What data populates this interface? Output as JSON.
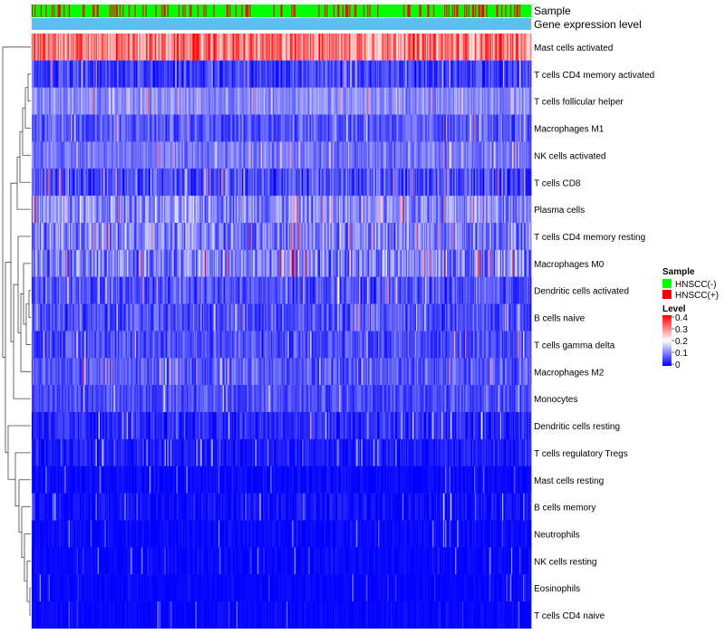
{
  "chart_data": {
    "type": "heatmap",
    "title": "",
    "annotation_tracks": [
      {
        "label": "Sample",
        "kind": "categorical",
        "mix_fraction_positive": 0.22
      },
      {
        "label": "Gene expression level",
        "kind": "constant",
        "color": "#5bc0eb"
      }
    ],
    "sample_groups": [
      {
        "name": "HNSCC(-)",
        "color": "#00ff00"
      },
      {
        "name": "HNSCC(+)",
        "color": "#ff0000"
      }
    ],
    "n_samples": 500,
    "rows": [
      {
        "name": "Mast cells activated",
        "mean": 0.3,
        "spread": 0.09
      },
      {
        "name": "T cells CD4 memory activated",
        "mean": 0.05,
        "spread": 0.05
      },
      {
        "name": "T cells follicular helper",
        "mean": 0.11,
        "spread": 0.04
      },
      {
        "name": "Macrophages M1",
        "mean": 0.07,
        "spread": 0.05
      },
      {
        "name": "NK cells activated",
        "mean": 0.09,
        "spread": 0.04
      },
      {
        "name": "T cells CD8",
        "mean": 0.06,
        "spread": 0.06
      },
      {
        "name": "Plasma cells",
        "mean": 0.11,
        "spread": 0.07
      },
      {
        "name": "T cells CD4 memory resting",
        "mean": 0.1,
        "spread": 0.07
      },
      {
        "name": "Macrophages M0",
        "mean": 0.1,
        "spread": 0.08
      },
      {
        "name": "Dendritic cells activated",
        "mean": 0.06,
        "spread": 0.05
      },
      {
        "name": "B cells naive",
        "mean": 0.06,
        "spread": 0.05
      },
      {
        "name": "T cells gamma delta",
        "mean": 0.06,
        "spread": 0.05
      },
      {
        "name": "Macrophages M2",
        "mean": 0.07,
        "spread": 0.05
      },
      {
        "name": "Monocytes",
        "mean": 0.06,
        "spread": 0.04
      },
      {
        "name": "Dendritic cells resting",
        "mean": 0.03,
        "spread": 0.04
      },
      {
        "name": "T cells regulatory  Tregs",
        "mean": 0.02,
        "spread": 0.03
      },
      {
        "name": "Mast cells resting",
        "mean": 0.005,
        "spread": 0.02
      },
      {
        "name": "B cells memory",
        "mean": 0.01,
        "spread": 0.03
      },
      {
        "name": "Neutrophils",
        "mean": 0.005,
        "spread": 0.02
      },
      {
        "name": "NK cells resting",
        "mean": 0.004,
        "spread": 0.015
      },
      {
        "name": "Eosinophils",
        "mean": 0.003,
        "spread": 0.012
      },
      {
        "name": "T cells CD4 naive",
        "mean": 0.004,
        "spread": 0.015
      }
    ],
    "color_scale": {
      "title": "Level",
      "min": 0,
      "max": 0.4,
      "stops": [
        {
          "value": 0,
          "color": "#0000ff"
        },
        {
          "value": 0.2,
          "color": "#ffffff"
        },
        {
          "value": 0.4,
          "color": "#ff0000"
        }
      ],
      "ticks": [
        "0.4",
        "0.3",
        "0.2",
        "0.1",
        "0"
      ]
    },
    "legend_position": "right",
    "row_dendrogram": "left"
  }
}
